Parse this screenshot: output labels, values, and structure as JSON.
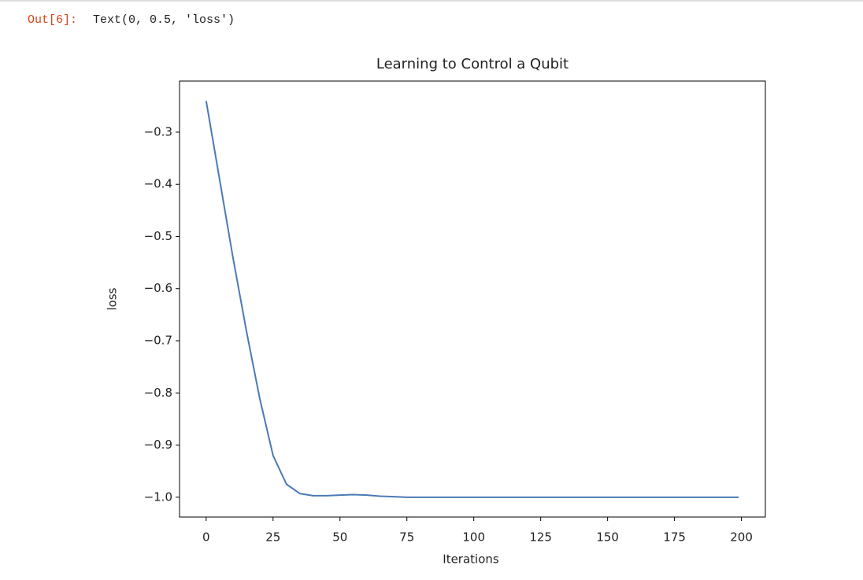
{
  "prompt": "Out[6]:",
  "output_text": "Text(0, 0.5, 'loss')",
  "chart_data": {
    "type": "line",
    "title": "Learning to Control a Qubit",
    "xlabel": "Iterations",
    "ylabel": "loss",
    "x": [
      0,
      5,
      10,
      15,
      20,
      25,
      30,
      35,
      40,
      45,
      50,
      55,
      60,
      65,
      70,
      75,
      80,
      90,
      100,
      110,
      120,
      130,
      140,
      150,
      160,
      170,
      180,
      190,
      199
    ],
    "values": [
      -0.24,
      -0.39,
      -0.54,
      -0.68,
      -0.81,
      -0.92,
      -0.975,
      -0.993,
      -0.997,
      -0.997,
      -0.996,
      -0.995,
      -0.996,
      -0.998,
      -0.999,
      -1.0,
      -1.0,
      -1.0,
      -1.0,
      -1.0,
      -1.0,
      -1.0,
      -1.0,
      -1.0,
      -1.0,
      -1.0,
      -1.0,
      -1.0,
      -1.0
    ],
    "color": "#4a7ab5",
    "xlim": [
      -9.95,
      208.95
    ],
    "ylim": [
      -1.038,
      -0.202
    ],
    "xticks": [
      0,
      25,
      50,
      75,
      100,
      125,
      150,
      175,
      200
    ],
    "yticks": [
      {
        "value": -1.0,
        "label": "−1.0"
      },
      {
        "value": -0.9,
        "label": "−0.9"
      },
      {
        "value": -0.8,
        "label": "−0.8"
      },
      {
        "value": -0.7,
        "label": "−0.7"
      },
      {
        "value": -0.6,
        "label": "−0.6"
      },
      {
        "value": -0.5,
        "label": "−0.5"
      },
      {
        "value": -0.4,
        "label": "−0.4"
      },
      {
        "value": -0.3,
        "label": "−0.3"
      }
    ]
  }
}
